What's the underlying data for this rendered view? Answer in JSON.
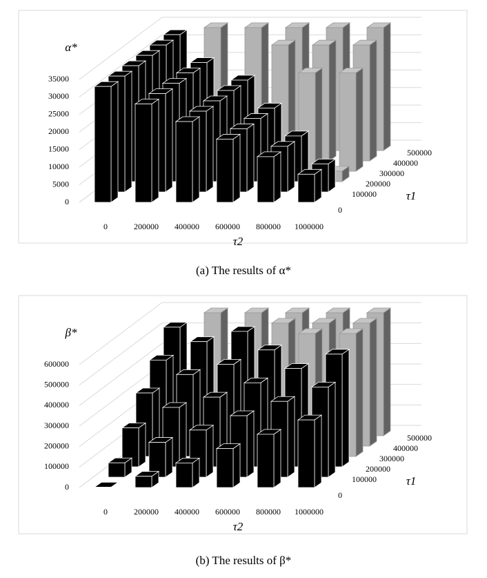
{
  "chart_data": [
    {
      "type": "bar3d",
      "title": "(a)  The results of  α*",
      "y_label": "α*",
      "x_label": "τ2",
      "depth_label": "τ1",
      "categories": [
        "0",
        "200000",
        "400000",
        "600000",
        "800000",
        "1000000"
      ],
      "ylim": [
        0,
        35000
      ],
      "yticks": [
        0,
        5000,
        10000,
        15000,
        20000,
        25000,
        30000,
        35000
      ],
      "grid": true,
      "series": [
        {
          "name": "0",
          "values": [
            33000,
            28000,
            23000,
            18000,
            13000,
            8000
          ],
          "colors": [
            "#000000",
            "#000000",
            "#000000",
            "#000000",
            "#000000",
            "#000000"
          ]
        },
        {
          "name": "100000",
          "values": [
            33000,
            28000,
            23000,
            18000,
            13000,
            8000
          ],
          "colors": [
            "#000000",
            "#000000",
            "#000000",
            "#000000",
            "#000000",
            "#000000"
          ]
        },
        {
          "name": "200000",
          "values": [
            33000,
            28000,
            23000,
            18000,
            13000,
            3000
          ],
          "colors": [
            "#000000",
            "#000000",
            "#000000",
            "#000000",
            "#000000",
            "#b3b3b3"
          ]
        },
        {
          "name": "300000",
          "values": [
            33000,
            28000,
            23000,
            18000,
            28000,
            28000
          ],
          "colors": [
            "#000000",
            "#000000",
            "#000000",
            "#000000",
            "#b3b3b3",
            "#b3b3b3"
          ]
        },
        {
          "name": "400000",
          "values": [
            33000,
            28000,
            23000,
            33000,
            33000,
            33000
          ],
          "colors": [
            "#000000",
            "#000000",
            "#000000",
            "#b3b3b3",
            "#b3b3b3",
            "#b3b3b3"
          ]
        },
        {
          "name": "500000",
          "values": [
            33000,
            35000,
            35000,
            35000,
            35000,
            35000
          ],
          "colors": [
            "#000000",
            "#b3b3b3",
            "#b3b3b3",
            "#b3b3b3",
            "#b3b3b3",
            "#b3b3b3"
          ]
        }
      ]
    },
    {
      "type": "bar3d",
      "title": "(b) The results of  β*",
      "y_label": "β*",
      "x_label": "τ2",
      "depth_label": "τ1",
      "categories": [
        "0",
        "200000",
        "400000",
        "600000",
        "800000",
        "1000000"
      ],
      "ylim": [
        0,
        600000
      ],
      "yticks": [
        0,
        100000,
        200000,
        300000,
        400000,
        500000,
        600000
      ],
      "grid": true,
      "series": [
        {
          "name": "0",
          "values": [
            2000,
            55000,
            120000,
            190000,
            260000,
            330000
          ],
          "colors": [
            "#000000",
            "#000000",
            "#000000",
            "#000000",
            "#000000",
            "#000000"
          ]
        },
        {
          "name": "100000",
          "values": [
            70000,
            170000,
            230000,
            300000,
            370000,
            440000
          ],
          "colors": [
            "#000000",
            "#000000",
            "#000000",
            "#000000",
            "#000000",
            "#000000"
          ]
        },
        {
          "name": "200000",
          "values": [
            190000,
            290000,
            340000,
            410000,
            480000,
            550000
          ],
          "colors": [
            "#000000",
            "#000000",
            "#000000",
            "#000000",
            "#000000",
            "#000000"
          ]
        },
        {
          "name": "300000",
          "values": [
            310000,
            400000,
            450000,
            520000,
            600000,
            600000
          ],
          "colors": [
            "#000000",
            "#000000",
            "#000000",
            "#000000",
            "#b3b3b3",
            "#b3b3b3"
          ]
        },
        {
          "name": "400000",
          "values": [
            420000,
            510000,
            560000,
            600000,
            600000,
            600000
          ],
          "colors": [
            "#000000",
            "#000000",
            "#000000",
            "#b3b3b3",
            "#b3b3b3",
            "#b3b3b3"
          ]
        },
        {
          "name": "500000",
          "values": [
            530000,
            600000,
            600000,
            600000,
            600000,
            600000
          ],
          "colors": [
            "#000000",
            "#b3b3b3",
            "#b3b3b3",
            "#b3b3b3",
            "#b3b3b3",
            "#b3b3b3"
          ]
        }
      ]
    }
  ]
}
